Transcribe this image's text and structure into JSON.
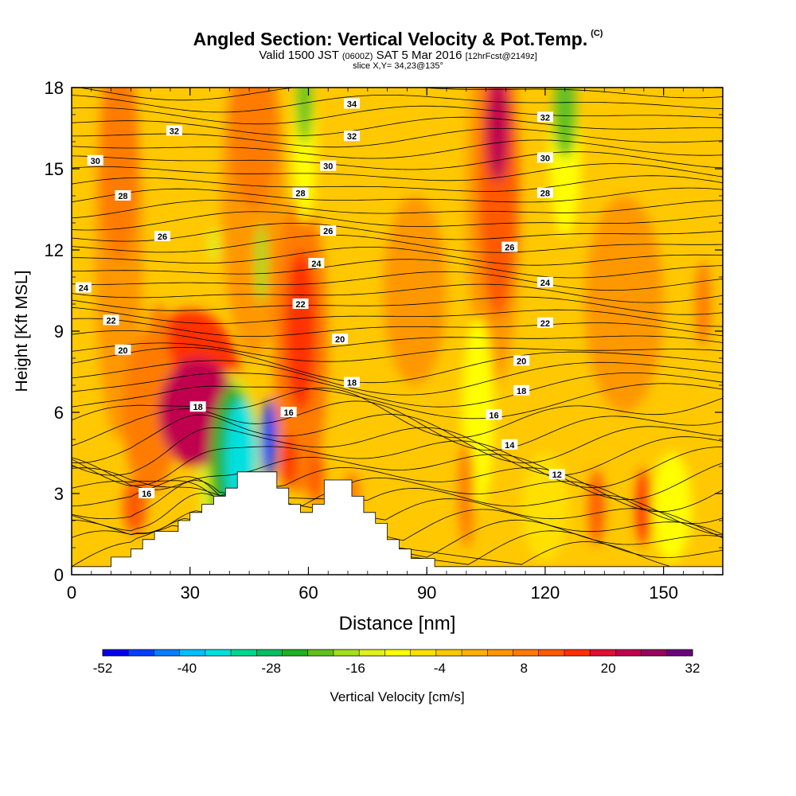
{
  "title": {
    "main": "Angled Section: Vertical Velocity & Pot.Temp.",
    "units": "(C)",
    "valid": "Valid 1500 JST",
    "utc": "(0600Z)",
    "date": "SAT 5 Mar 2016",
    "fcst": "[12hrFcst@2149z]",
    "slice": "slice X,Y= 34,23@135°"
  },
  "chart_data": {
    "type": "heatmap",
    "xlabel": "Distance [nm]",
    "ylabel": "Height [Kft MSL]",
    "xlim": [
      0,
      165
    ],
    "ylim": [
      0,
      18
    ],
    "x_ticks": [
      "0",
      "30",
      "60",
      "90",
      "120",
      "150"
    ],
    "y_ticks": [
      "0",
      "3",
      "6",
      "9",
      "12",
      "15",
      "18"
    ],
    "colorbar": {
      "label": "Vertical Velocity [cm/s]",
      "tick_labels": [
        "-52",
        "-40",
        "-28",
        "-16",
        "-4",
        "8",
        "20",
        "32"
      ],
      "min": -52,
      "max": 32,
      "step": 4,
      "colors": [
        "#0000f0",
        "#0040ff",
        "#0080ff",
        "#00c0ff",
        "#00e0e0",
        "#00d890",
        "#00c060",
        "#20b020",
        "#60c020",
        "#a0e020",
        "#e0f020",
        "#ffff00",
        "#ffe000",
        "#ffc800",
        "#ffb000",
        "#ff9800",
        "#ff7c00",
        "#ff5a00",
        "#ff3000",
        "#e01030",
        "#c00050",
        "#9c0060",
        "#6c0080"
      ]
    },
    "terrain_profile": [
      [
        0,
        0.3
      ],
      [
        10,
        0.3
      ],
      [
        10,
        0.65
      ],
      [
        15,
        0.65
      ],
      [
        15,
        0.95
      ],
      [
        18,
        0.95
      ],
      [
        18,
        1.3
      ],
      [
        21,
        1.3
      ],
      [
        21,
        1.6
      ],
      [
        27,
        1.6
      ],
      [
        27,
        2.0
      ],
      [
        30,
        2.0
      ],
      [
        30,
        2.3
      ],
      [
        33,
        2.3
      ],
      [
        33,
        2.6
      ],
      [
        36,
        2.6
      ],
      [
        36,
        2.9
      ],
      [
        39,
        2.9
      ],
      [
        39,
        3.2
      ],
      [
        42,
        3.2
      ],
      [
        42,
        3.8
      ],
      [
        52,
        3.8
      ],
      [
        52,
        3.2
      ],
      [
        55,
        3.2
      ],
      [
        55,
        2.6
      ],
      [
        58,
        2.6
      ],
      [
        58,
        2.3
      ],
      [
        61,
        2.3
      ],
      [
        61,
        2.6
      ],
      [
        64,
        2.6
      ],
      [
        64,
        3.5
      ],
      [
        71,
        3.5
      ],
      [
        71,
        2.9
      ],
      [
        74,
        2.9
      ],
      [
        74,
        2.3
      ],
      [
        77,
        2.3
      ],
      [
        77,
        1.9
      ],
      [
        80,
        1.9
      ],
      [
        80,
        1.3
      ],
      [
        83,
        1.3
      ],
      [
        83,
        0.95
      ],
      [
        86,
        0.95
      ],
      [
        86,
        0.6
      ],
      [
        92,
        0.6
      ],
      [
        92,
        0.3
      ],
      [
        165,
        0.3
      ]
    ],
    "theta_contour_labels": [
      {
        "text": "34",
        "x": 71,
        "y": 17.4
      },
      {
        "text": "32",
        "x": 26,
        "y": 16.4
      },
      {
        "text": "32",
        "x": 71,
        "y": 16.2
      },
      {
        "text": "32",
        "x": 120,
        "y": 16.9
      },
      {
        "text": "30",
        "x": 6,
        "y": 15.3
      },
      {
        "text": "30",
        "x": 65,
        "y": 15.1
      },
      {
        "text": "30",
        "x": 120,
        "y": 15.4
      },
      {
        "text": "28",
        "x": 13,
        "y": 14.0
      },
      {
        "text": "28",
        "x": 58,
        "y": 14.1
      },
      {
        "text": "28",
        "x": 120,
        "y": 14.1
      },
      {
        "text": "26",
        "x": 23,
        "y": 12.5
      },
      {
        "text": "26",
        "x": 65,
        "y": 12.7
      },
      {
        "text": "26",
        "x": 111,
        "y": 12.1
      },
      {
        "text": "24",
        "x": 3,
        "y": 10.6
      },
      {
        "text": "24",
        "x": 62,
        "y": 11.5
      },
      {
        "text": "24",
        "x": 120,
        "y": 10.8
      },
      {
        "text": "22",
        "x": 10,
        "y": 9.4
      },
      {
        "text": "22",
        "x": 58,
        "y": 10.0
      },
      {
        "text": "22",
        "x": 120,
        "y": 9.3
      },
      {
        "text": "20",
        "x": 13,
        "y": 8.3
      },
      {
        "text": "20",
        "x": 68,
        "y": 8.7
      },
      {
        "text": "20",
        "x": 114,
        "y": 7.9
      },
      {
        "text": "18",
        "x": 32,
        "y": 6.2
      },
      {
        "text": "18",
        "x": 71,
        "y": 7.1
      },
      {
        "text": "18",
        "x": 114,
        "y": 6.8
      },
      {
        "text": "16",
        "x": 19,
        "y": 3.0
      },
      {
        "text": "16",
        "x": 55,
        "y": 6.0
      },
      {
        "text": "16",
        "x": 107,
        "y": 5.9
      },
      {
        "text": "14",
        "x": 111,
        "y": 4.8
      },
      {
        "text": "12",
        "x": 123,
        "y": 3.7
      }
    ],
    "velocity_features": [
      {
        "x": 32,
        "y": 6.0,
        "value": 30,
        "rx": 10,
        "ry": 2.0
      },
      {
        "x": 30,
        "y": 7.0,
        "value": 22,
        "rx": 13,
        "ry": 2.8
      },
      {
        "x": 20,
        "y": 6.0,
        "value": 14,
        "rx": 7,
        "ry": 3.0
      },
      {
        "x": 58,
        "y": 9.0,
        "value": 22,
        "rx": 4,
        "ry": 3.0
      },
      {
        "x": 58,
        "y": 8.5,
        "value": 12,
        "rx": 7,
        "ry": 5.5
      },
      {
        "x": 108,
        "y": 16.5,
        "value": 28,
        "rx": 3,
        "ry": 2.0
      },
      {
        "x": 108,
        "y": 14.5,
        "value": 18,
        "rx": 5,
        "ry": 5.0
      },
      {
        "x": 107,
        "y": 14.0,
        "value": 10,
        "rx": 7,
        "ry": 7.0
      },
      {
        "x": 12,
        "y": 15.5,
        "value": 14,
        "rx": 5,
        "ry": 4.0
      },
      {
        "x": 12,
        "y": 12.0,
        "value": 8,
        "rx": 6,
        "ry": 7.0
      },
      {
        "x": 46,
        "y": 16.5,
        "value": 14,
        "rx": 6,
        "ry": 3.0
      },
      {
        "x": 46,
        "y": 14.0,
        "value": 8,
        "rx": 8,
        "ry": 6.0
      },
      {
        "x": 50,
        "y": 5.0,
        "value": -48,
        "rx": 2,
        "ry": 1.5
      },
      {
        "x": 43,
        "y": 4.3,
        "value": -36,
        "rx": 4,
        "ry": 2.2
      },
      {
        "x": 41,
        "y": 4.0,
        "value": -24,
        "rx": 6,
        "ry": 3.0
      },
      {
        "x": 40,
        "y": 4.0,
        "value": -12,
        "rx": 8,
        "ry": 3.5
      },
      {
        "x": 59,
        "y": 17.5,
        "value": -20,
        "rx": 2,
        "ry": 1.6
      },
      {
        "x": 59,
        "y": 16.0,
        "value": -8,
        "rx": 3,
        "ry": 3.0
      },
      {
        "x": 125,
        "y": 17.0,
        "value": -18,
        "rx": 3,
        "ry": 1.6
      },
      {
        "x": 125,
        "y": 15.5,
        "value": -8,
        "rx": 4,
        "ry": 3.0
      },
      {
        "x": 48,
        "y": 11.5,
        "value": -14,
        "rx": 1.5,
        "ry": 1.5
      },
      {
        "x": 36,
        "y": 12.2,
        "value": -10,
        "rx": 1.5,
        "ry": 0.6
      },
      {
        "x": 103,
        "y": 6.0,
        "value": -6,
        "rx": 4,
        "ry": 3.5
      },
      {
        "x": 120,
        "y": 2.5,
        "value": -4,
        "rx": 6,
        "ry": 2.0
      },
      {
        "x": 152,
        "y": 2.5,
        "value": -6,
        "rx": 5,
        "ry": 2.0
      },
      {
        "x": 145,
        "y": 2.5,
        "value": 20,
        "rx": 2,
        "ry": 1.4
      },
      {
        "x": 133,
        "y": 2.5,
        "value": 16,
        "rx": 2,
        "ry": 1.4
      },
      {
        "x": 100,
        "y": 3.0,
        "value": 14,
        "rx": 2,
        "ry": 2.0
      },
      {
        "x": 16,
        "y": 2.5,
        "value": 16,
        "rx": 3,
        "ry": 1.0
      },
      {
        "x": 55,
        "y": 4.2,
        "value": 20,
        "rx": 2,
        "ry": 1.0
      },
      {
        "x": 62,
        "y": 3.6,
        "value": 18,
        "rx": 2,
        "ry": 1.0
      },
      {
        "x": 71,
        "y": 3.0,
        "value": 14,
        "rx": 2,
        "ry": 0.8
      },
      {
        "x": 160,
        "y": 10.0,
        "value": 12,
        "rx": 2,
        "ry": 1.6
      },
      {
        "x": 22,
        "y": 9.0,
        "value": 14,
        "rx": 2.5,
        "ry": 1.0
      },
      {
        "x": 87,
        "y": 10.5,
        "value": 8,
        "rx": 8,
        "ry": 3.5
      },
      {
        "x": 140,
        "y": 10.0,
        "value": 8,
        "rx": 10,
        "ry": 4.0
      }
    ]
  }
}
